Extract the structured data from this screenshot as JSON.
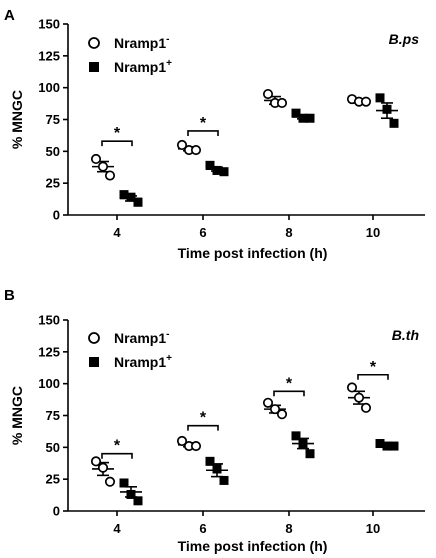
{
  "chart_data": [
    {
      "type": "scatter",
      "panel_label": "A",
      "organism_label": "B.ps",
      "categories": [
        "4",
        "6",
        "8",
        "10"
      ],
      "xlabel": "Time post infection (h)",
      "ylabel": "% MNGC",
      "ylim": [
        0,
        150
      ],
      "yticks": [
        "0",
        "25",
        "50",
        "75",
        "100",
        "125",
        "150"
      ],
      "legend_position": "top-left",
      "series": [
        {
          "name": "Nramp1",
          "name_sup": "-",
          "marker": "open-circle",
          "points": [
            [
              44,
              38,
              31
            ],
            [
              55,
              51,
              51
            ],
            [
              95,
              88,
              88
            ],
            [
              91,
              89,
              89
            ]
          ],
          "mean": [
            38,
            52,
            90,
            89
          ],
          "sem": [
            4,
            1.5,
            3,
            1
          ]
        },
        {
          "name": "Nramp1",
          "name_sup": "+",
          "marker": "filled-square",
          "points": [
            [
              16,
              14,
              10
            ],
            [
              39,
              35,
              34
            ],
            [
              80,
              76,
              76
            ],
            [
              92,
              83,
              72
            ]
          ],
          "mean": [
            13,
            36,
            77,
            82
          ],
          "sem": [
            2,
            1.5,
            1.5,
            6
          ]
        }
      ],
      "significance": [
        {
          "category": "4",
          "label": "*",
          "y": 58
        },
        {
          "category": "6",
          "label": "*",
          "y": 66
        }
      ]
    },
    {
      "type": "scatter",
      "panel_label": "B",
      "organism_label": "B.th",
      "categories": [
        "4",
        "6",
        "8",
        "10"
      ],
      "xlabel": "Time post infection (h)",
      "ylabel": "% MNGC",
      "ylim": [
        0,
        150
      ],
      "yticks": [
        "0",
        "25",
        "50",
        "75",
        "100",
        "125",
        "150"
      ],
      "legend_position": "top-left",
      "series": [
        {
          "name": "Nramp1",
          "name_sup": "-",
          "marker": "open-circle",
          "points": [
            [
              39,
              34,
              23
            ],
            [
              55,
              51,
              51
            ],
            [
              85,
              80,
              76
            ],
            [
              97,
              89,
              81
            ]
          ],
          "mean": [
            33,
            52,
            80,
            89
          ],
          "sem": [
            5,
            1.5,
            3,
            5
          ]
        },
        {
          "name": "Nramp1",
          "name_sup": "+",
          "marker": "filled-square",
          "points": [
            [
              22,
              13,
              8
            ],
            [
              39,
              33,
              24
            ],
            [
              59,
              53,
              45
            ],
            [
              53,
              51,
              51
            ]
          ],
          "mean": [
            15,
            32,
            53,
            52
          ],
          "sem": [
            4,
            5,
            4,
            1
          ]
        }
      ],
      "significance": [
        {
          "category": "4",
          "label": "*",
          "y": 45
        },
        {
          "category": "6",
          "label": "*",
          "y": 67
        },
        {
          "category": "8",
          "label": "*",
          "y": 94
        },
        {
          "category": "10",
          "label": "*",
          "y": 107
        }
      ]
    }
  ]
}
